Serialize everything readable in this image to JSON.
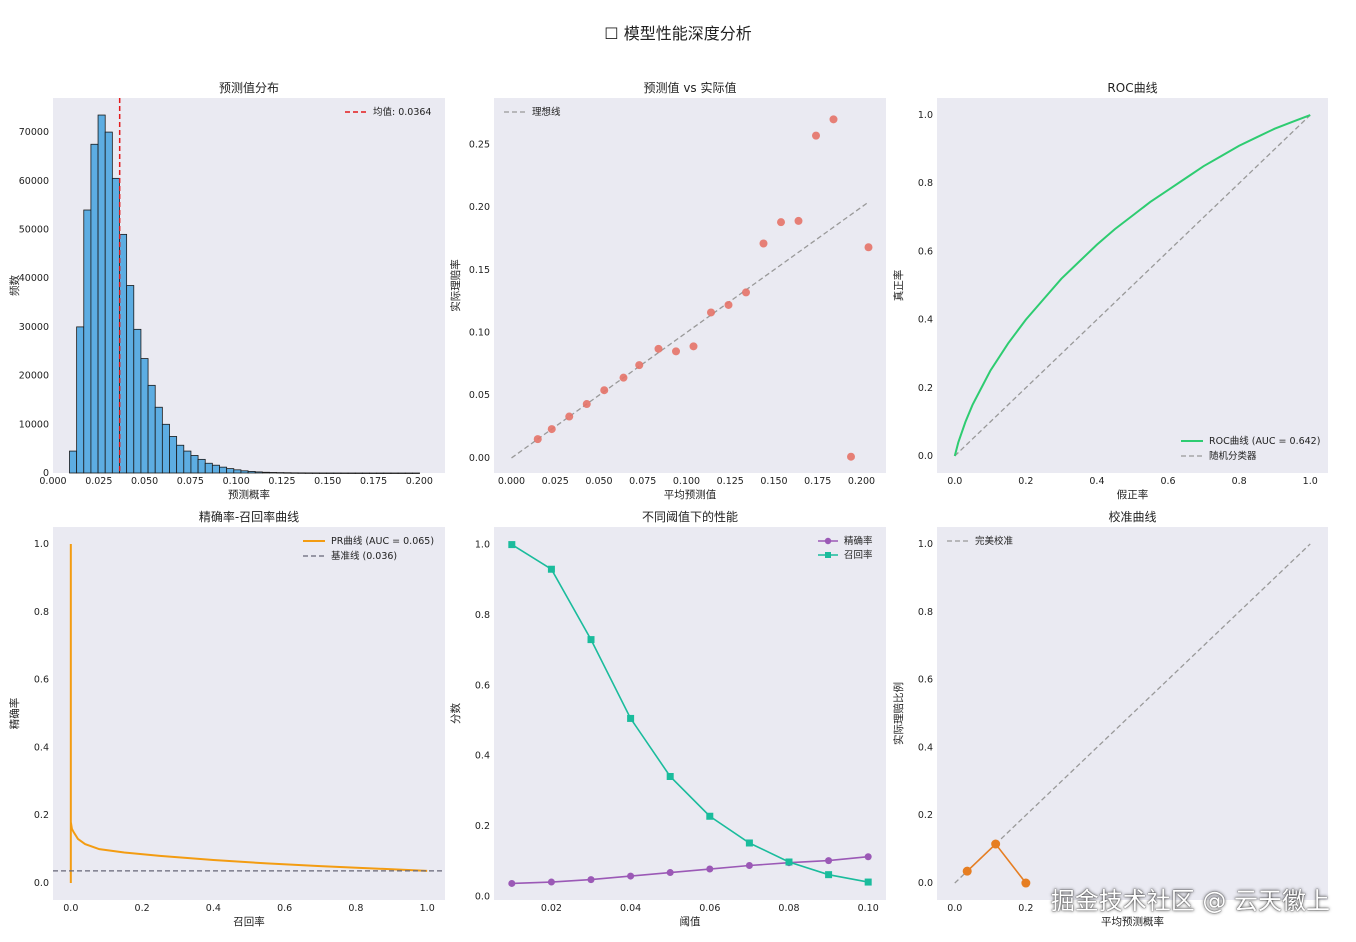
{
  "figure": {
    "suptitle": "☐ 模型性能深度分析",
    "watermark": "掘金技术社区 @ 云天徽上"
  },
  "colors": {
    "panel_bg": "#eaeaf2",
    "hist_bar": "#5dade2",
    "mean_line": "#e31a1c",
    "scatter": "#e57368",
    "ideal": "#999999",
    "roc": "#2ecc71",
    "pr": "#f39c12",
    "baseline": "#666677",
    "precision": "#9b59b6",
    "recall": "#1abc9c",
    "calibration": "#e67e22"
  },
  "chart_data": [
    {
      "type": "bar",
      "id": "hist",
      "title": "预测值分布",
      "xlabel": "预测概率",
      "ylabel": "频数",
      "xlim": [
        0.0,
        0.214
      ],
      "ylim": [
        0,
        77000
      ],
      "xticks": [
        0.0,
        0.025,
        0.05,
        0.075,
        0.1,
        0.125,
        0.15,
        0.175,
        0.2
      ],
      "xtick_labels": [
        "0.000",
        "0.025",
        "0.050",
        "0.075",
        "0.100",
        "0.125",
        "0.150",
        "0.175",
        "0.200"
      ],
      "yticks": [
        0,
        10000,
        20000,
        30000,
        40000,
        50000,
        60000,
        70000
      ],
      "ytick_labels": [
        "0",
        "10000",
        "20000",
        "30000",
        "40000",
        "50000",
        "60000",
        "70000"
      ],
      "bin_start": 0.009,
      "bin_width": 0.0039,
      "values": [
        4500,
        30000,
        54000,
        67500,
        73500,
        70000,
        60500,
        49000,
        38500,
        29500,
        23500,
        18000,
        13500,
        10000,
        7500,
        5700,
        4500,
        3600,
        2800,
        2000,
        1600,
        1200,
        900,
        650,
        450,
        320,
        220,
        150,
        110,
        80,
        60,
        40,
        30,
        20,
        15,
        10,
        8,
        6,
        4,
        3,
        2,
        2,
        1,
        1,
        1,
        1,
        1,
        1,
        1
      ],
      "mean": 0.0364,
      "legend": [
        "均值: 0.0364"
      ],
      "legend_loc": "upper right",
      "grid": false
    },
    {
      "type": "scatter",
      "id": "pred_vs_actual",
      "title": "预测值 vs 实际值",
      "xlabel": "平均预测值",
      "ylabel": "实际理赔率",
      "xlim": [
        -0.01,
        0.214
      ],
      "ylim": [
        -0.012,
        0.287
      ],
      "xticks": [
        0.0,
        0.025,
        0.05,
        0.075,
        0.1,
        0.125,
        0.15,
        0.175,
        0.2
      ],
      "xtick_labels": [
        "0.000",
        "0.025",
        "0.050",
        "0.075",
        "0.100",
        "0.125",
        "0.150",
        "0.175",
        "0.200"
      ],
      "yticks": [
        0.0,
        0.05,
        0.1,
        0.15,
        0.2,
        0.25
      ],
      "ytick_labels": [
        "0.00",
        "0.05",
        "0.10",
        "0.15",
        "0.20",
        "0.25"
      ],
      "x": [
        0.015,
        0.023,
        0.033,
        0.043,
        0.053,
        0.064,
        0.073,
        0.084,
        0.094,
        0.104,
        0.114,
        0.124,
        0.134,
        0.144,
        0.154,
        0.164,
        0.174,
        0.184,
        0.194,
        0.204
      ],
      "y": [
        0.015,
        0.023,
        0.033,
        0.043,
        0.054,
        0.064,
        0.074,
        0.087,
        0.085,
        0.089,
        0.116,
        0.122,
        0.132,
        0.171,
        0.188,
        0.189,
        0.257,
        0.27,
        0.001,
        0.168
      ],
      "ideal_line": [
        0.0,
        0.204
      ],
      "legend": [
        "理想线"
      ],
      "legend_loc": "upper left",
      "grid": false
    },
    {
      "type": "line",
      "id": "roc",
      "title": "ROC曲线",
      "xlabel": "假正率",
      "ylabel": "真正率",
      "xlim": [
        -0.05,
        1.05
      ],
      "ylim": [
        -0.05,
        1.05
      ],
      "xticks": [
        0.0,
        0.2,
        0.4,
        0.6,
        0.8,
        1.0
      ],
      "xtick_labels": [
        "0.0",
        "0.2",
        "0.4",
        "0.6",
        "0.8",
        "1.0"
      ],
      "yticks": [
        0.0,
        0.2,
        0.4,
        0.6,
        0.8,
        1.0
      ],
      "ytick_labels": [
        "0.0",
        "0.2",
        "0.4",
        "0.6",
        "0.8",
        "1.0"
      ],
      "x": [
        0.0,
        0.01,
        0.03,
        0.05,
        0.08,
        0.1,
        0.15,
        0.2,
        0.25,
        0.3,
        0.35,
        0.4,
        0.45,
        0.5,
        0.55,
        0.6,
        0.65,
        0.7,
        0.75,
        0.8,
        0.85,
        0.9,
        0.95,
        1.0
      ],
      "y": [
        0.0,
        0.04,
        0.1,
        0.15,
        0.21,
        0.25,
        0.33,
        0.4,
        0.46,
        0.52,
        0.57,
        0.62,
        0.665,
        0.705,
        0.745,
        0.78,
        0.815,
        0.85,
        0.88,
        0.91,
        0.935,
        0.96,
        0.98,
        1.0
      ],
      "legend": [
        "ROC曲线 (AUC = 0.642)",
        "随机分类器"
      ],
      "legend_loc": "lower right",
      "grid": false
    },
    {
      "type": "line",
      "id": "pr",
      "title": "精确率-召回率曲线",
      "xlabel": "召回率",
      "ylabel": "精确率",
      "xlim": [
        -0.05,
        1.05
      ],
      "ylim": [
        -0.05,
        1.05
      ],
      "xticks": [
        0.0,
        0.2,
        0.4,
        0.6,
        0.8,
        1.0
      ],
      "xtick_labels": [
        "0.0",
        "0.2",
        "0.4",
        "0.6",
        "0.8",
        "1.0"
      ],
      "yticks": [
        0.0,
        0.2,
        0.4,
        0.6,
        0.8,
        1.0
      ],
      "ytick_labels": [
        "0.0",
        "0.2",
        "0.4",
        "0.6",
        "0.8",
        "1.0"
      ],
      "x": [
        0.0,
        0.0,
        0.0,
        0.0,
        0.003,
        0.008,
        0.02,
        0.04,
        0.08,
        0.15,
        0.25,
        0.4,
        0.55,
        0.7,
        0.85,
        1.0
      ],
      "y": [
        0.0,
        1.0,
        0.25,
        0.18,
        0.16,
        0.15,
        0.13,
        0.115,
        0.1,
        0.09,
        0.08,
        0.068,
        0.058,
        0.05,
        0.043,
        0.036
      ],
      "baseline": 0.036,
      "legend": [
        "PR曲线 (AUC = 0.065)",
        "基准线 (0.036)"
      ],
      "legend_loc": "upper right",
      "grid": false
    },
    {
      "type": "line",
      "id": "threshold",
      "title": "不同阈值下的性能",
      "xlabel": "阈值",
      "ylabel": "分数",
      "xlim": [
        0.0055,
        0.1045
      ],
      "ylim": [
        -0.01,
        1.05
      ],
      "xticks": [
        0.02,
        0.04,
        0.06,
        0.08,
        0.1
      ],
      "xtick_labels": [
        "0.02",
        "0.04",
        "0.06",
        "0.08",
        "0.10"
      ],
      "yticks": [
        0.0,
        0.2,
        0.4,
        0.6,
        0.8,
        1.0
      ],
      "ytick_labels": [
        "0.0",
        "0.2",
        "0.4",
        "0.6",
        "0.8",
        "1.0"
      ],
      "x": [
        0.01,
        0.02,
        0.03,
        0.04,
        0.05,
        0.06,
        0.07,
        0.08,
        0.09,
        0.1
      ],
      "series": [
        {
          "name": "精确率",
          "values": [
            0.037,
            0.041,
            0.048,
            0.058,
            0.068,
            0.078,
            0.088,
            0.096,
            0.102,
            0.113
          ]
        },
        {
          "name": "召回率",
          "values": [
            1.0,
            0.93,
            0.73,
            0.506,
            0.341,
            0.228,
            0.152,
            0.098,
            0.062,
            0.041
          ]
        }
      ],
      "legend_loc": "upper right",
      "grid": false
    },
    {
      "type": "line",
      "id": "calibration",
      "title": "校准曲线",
      "xlabel": "平均预测概率",
      "ylabel": "实际理赔比例",
      "xlim": [
        -0.05,
        1.05
      ],
      "ylim": [
        -0.05,
        1.05
      ],
      "xticks": [
        0.0,
        0.2
      ],
      "xtick_labels": [
        "0.0",
        "0.2"
      ],
      "yticks": [
        0.0,
        0.2,
        0.4,
        0.6,
        0.8,
        1.0
      ],
      "ytick_labels": [
        "0.0",
        "0.2",
        "0.4",
        "0.6",
        "0.8",
        "1.0"
      ],
      "x": [
        0.035,
        0.115,
        0.2
      ],
      "y": [
        0.035,
        0.115,
        0.0
      ],
      "legend": [
        "完美校准"
      ],
      "legend_loc": "upper left",
      "grid": false
    }
  ]
}
